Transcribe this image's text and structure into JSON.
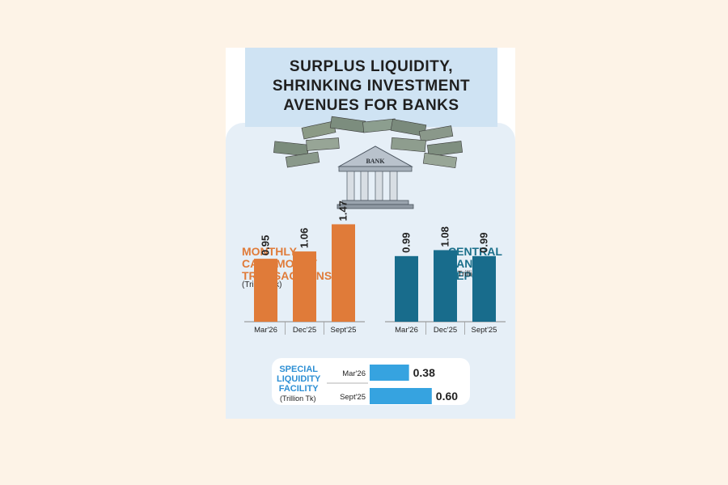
{
  "title": "SURPLUS LIQUIDITY,\nSHRINKING INVESTMENT\nAVENUES FOR BANKS",
  "illustration": {
    "icon": "bank-building-with-cash-icon",
    "bank_label": "BANK"
  },
  "colors": {
    "call_money": "#e07b39",
    "repo": "#186c8c",
    "slf": "#36a3e0",
    "title_bg": "#cfe3f3",
    "panel_bg": "#e6eff7"
  },
  "chart_data": [
    {
      "type": "bar",
      "title": "MONTHLY\nCALL-MONEY\nTRANSACTIONS",
      "unit": "(Trillion Tk)",
      "categories": [
        "Mar'26",
        "Dec'25",
        "Sept'25"
      ],
      "values": [
        0.95,
        1.06,
        1.47
      ],
      "value_labels": [
        "0.95",
        "1.06",
        "1.47"
      ]
    },
    {
      "type": "bar",
      "title": "CENTRAL\nBANK REPO",
      "unit": "(Trillion Tk)",
      "categories": [
        "Mar'26",
        "Dec'25",
        "Sept'25"
      ],
      "values": [
        0.99,
        1.08,
        0.99
      ],
      "value_labels": [
        "0.99",
        "1.08",
        "0.99"
      ]
    },
    {
      "type": "bar",
      "orientation": "horizontal",
      "title": "SPECIAL\nLIQUIDITY\nFACILITY",
      "unit": "(Trillion Tk)",
      "categories": [
        "Mar'26",
        "Sept'25"
      ],
      "values": [
        0.38,
        0.6
      ],
      "value_labels": [
        "0.38",
        "0.60"
      ]
    }
  ]
}
